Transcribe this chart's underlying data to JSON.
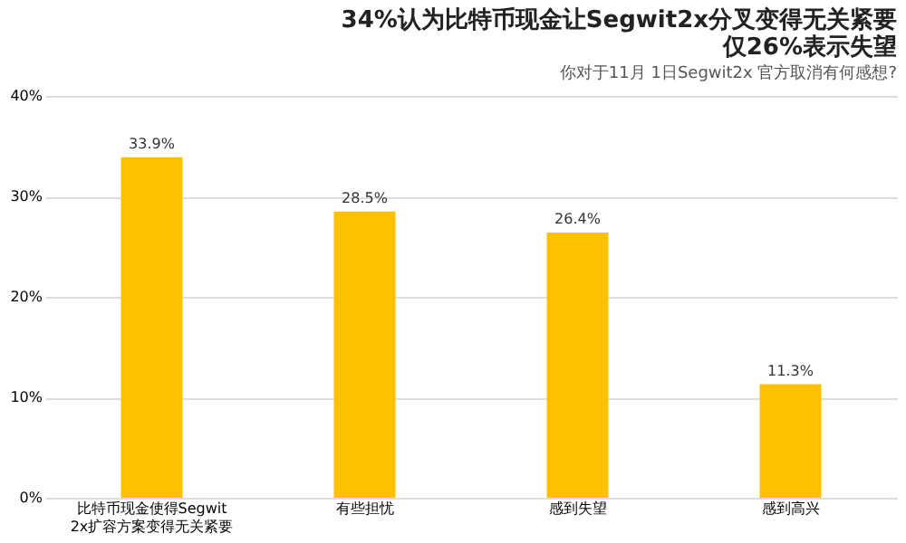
{
  "chart_data": {
    "type": "bar",
    "title": [
      "34%认为比特币现金让Segwit2x分叉变得无关紧要",
      "仅26%表示失望"
    ],
    "subtitle": "你对于11月 1日Segwit2x 官方取消有何感想?",
    "categories": [
      "比特币现金使得Segwit2x扩容方案变得无关紧要",
      "有些担忧",
      "感到失望",
      "感到高兴"
    ],
    "values": [
      33.9,
      28.5,
      26.4,
      11.3
    ],
    "color": "#ffc000",
    "value_labels": [
      "33.9%",
      "28.5%",
      "26.4%",
      "11.3%"
    ],
    "ylim": [
      0,
      40
    ],
    "yticks": [
      {
        "value": 0,
        "label": "0%"
      },
      {
        "value": 10,
        "label": "10%"
      },
      {
        "value": 20,
        "label": "20%"
      },
      {
        "value": 30,
        "label": "30%"
      },
      {
        "value": 40,
        "label": "40%"
      }
    ],
    "grid": "y"
  }
}
